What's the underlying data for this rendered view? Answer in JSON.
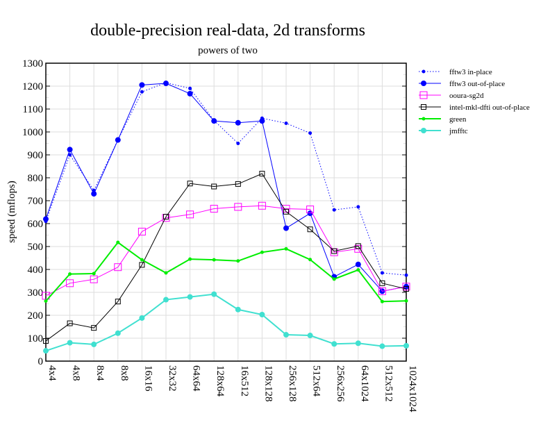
{
  "chart_data": {
    "type": "line",
    "title": "double-precision real-data, 2d transforms",
    "subtitle": "powers of two",
    "xlabel": "",
    "ylabel": "speed (mflops)",
    "ylim": [
      0,
      1300
    ],
    "yticks": [
      0,
      100,
      200,
      300,
      400,
      500,
      600,
      700,
      800,
      900,
      1000,
      1100,
      1200,
      1300
    ],
    "grid": true,
    "legend_position": "right",
    "categories": [
      "4x4",
      "4x8",
      "8x4",
      "8x8",
      "16x16",
      "32x32",
      "64x64",
      "128x64",
      "16x512",
      "128x128",
      "256x128",
      "512x64",
      "256x256",
      "64x1024",
      "512x512",
      "1024x1024"
    ],
    "series": [
      {
        "name": "fftw3 in-place",
        "color": "#0000ff",
        "style": "dotted",
        "marker": "small-dot",
        "values": [
          610,
          900,
          745,
          965,
          1175,
          1215,
          1190,
          1050,
          950,
          1060,
          1038,
          995,
          660,
          673,
          385,
          375
        ]
      },
      {
        "name": "fftw3 out-of-place",
        "color": "#0000ff",
        "style": "solid",
        "marker": "dot",
        "values": [
          620,
          923,
          730,
          965,
          1205,
          1212,
          1167,
          1048,
          1040,
          1048,
          580,
          645,
          368,
          422,
          305,
          325
        ]
      },
      {
        "name": "ooura-sg2d",
        "color": "#ff00ff",
        "style": "solid",
        "marker": "open-square",
        "values": [
          285,
          340,
          357,
          410,
          565,
          625,
          640,
          665,
          673,
          678,
          665,
          662,
          475,
          490,
          305,
          325
        ]
      },
      {
        "name": "intel-mkl-dfti out-of-place",
        "color": "#000000",
        "style": "solid",
        "marker": "small-square",
        "values": [
          88,
          165,
          145,
          260,
          420,
          630,
          775,
          762,
          773,
          818,
          652,
          575,
          480,
          502,
          340,
          315
        ]
      },
      {
        "name": "green",
        "color": "#00ee00",
        "style": "solid-thick",
        "marker": "small-dot",
        "values": [
          262,
          380,
          382,
          518,
          442,
          385,
          445,
          442,
          437,
          475,
          490,
          443,
          358,
          398,
          260,
          263
        ]
      },
      {
        "name": "jmfftc",
        "color": "#40e0d0",
        "style": "solid-thick",
        "marker": "dot",
        "values": [
          45,
          80,
          73,
          122,
          188,
          268,
          280,
          292,
          225,
          203,
          115,
          112,
          75,
          78,
          65,
          67
        ]
      }
    ]
  }
}
